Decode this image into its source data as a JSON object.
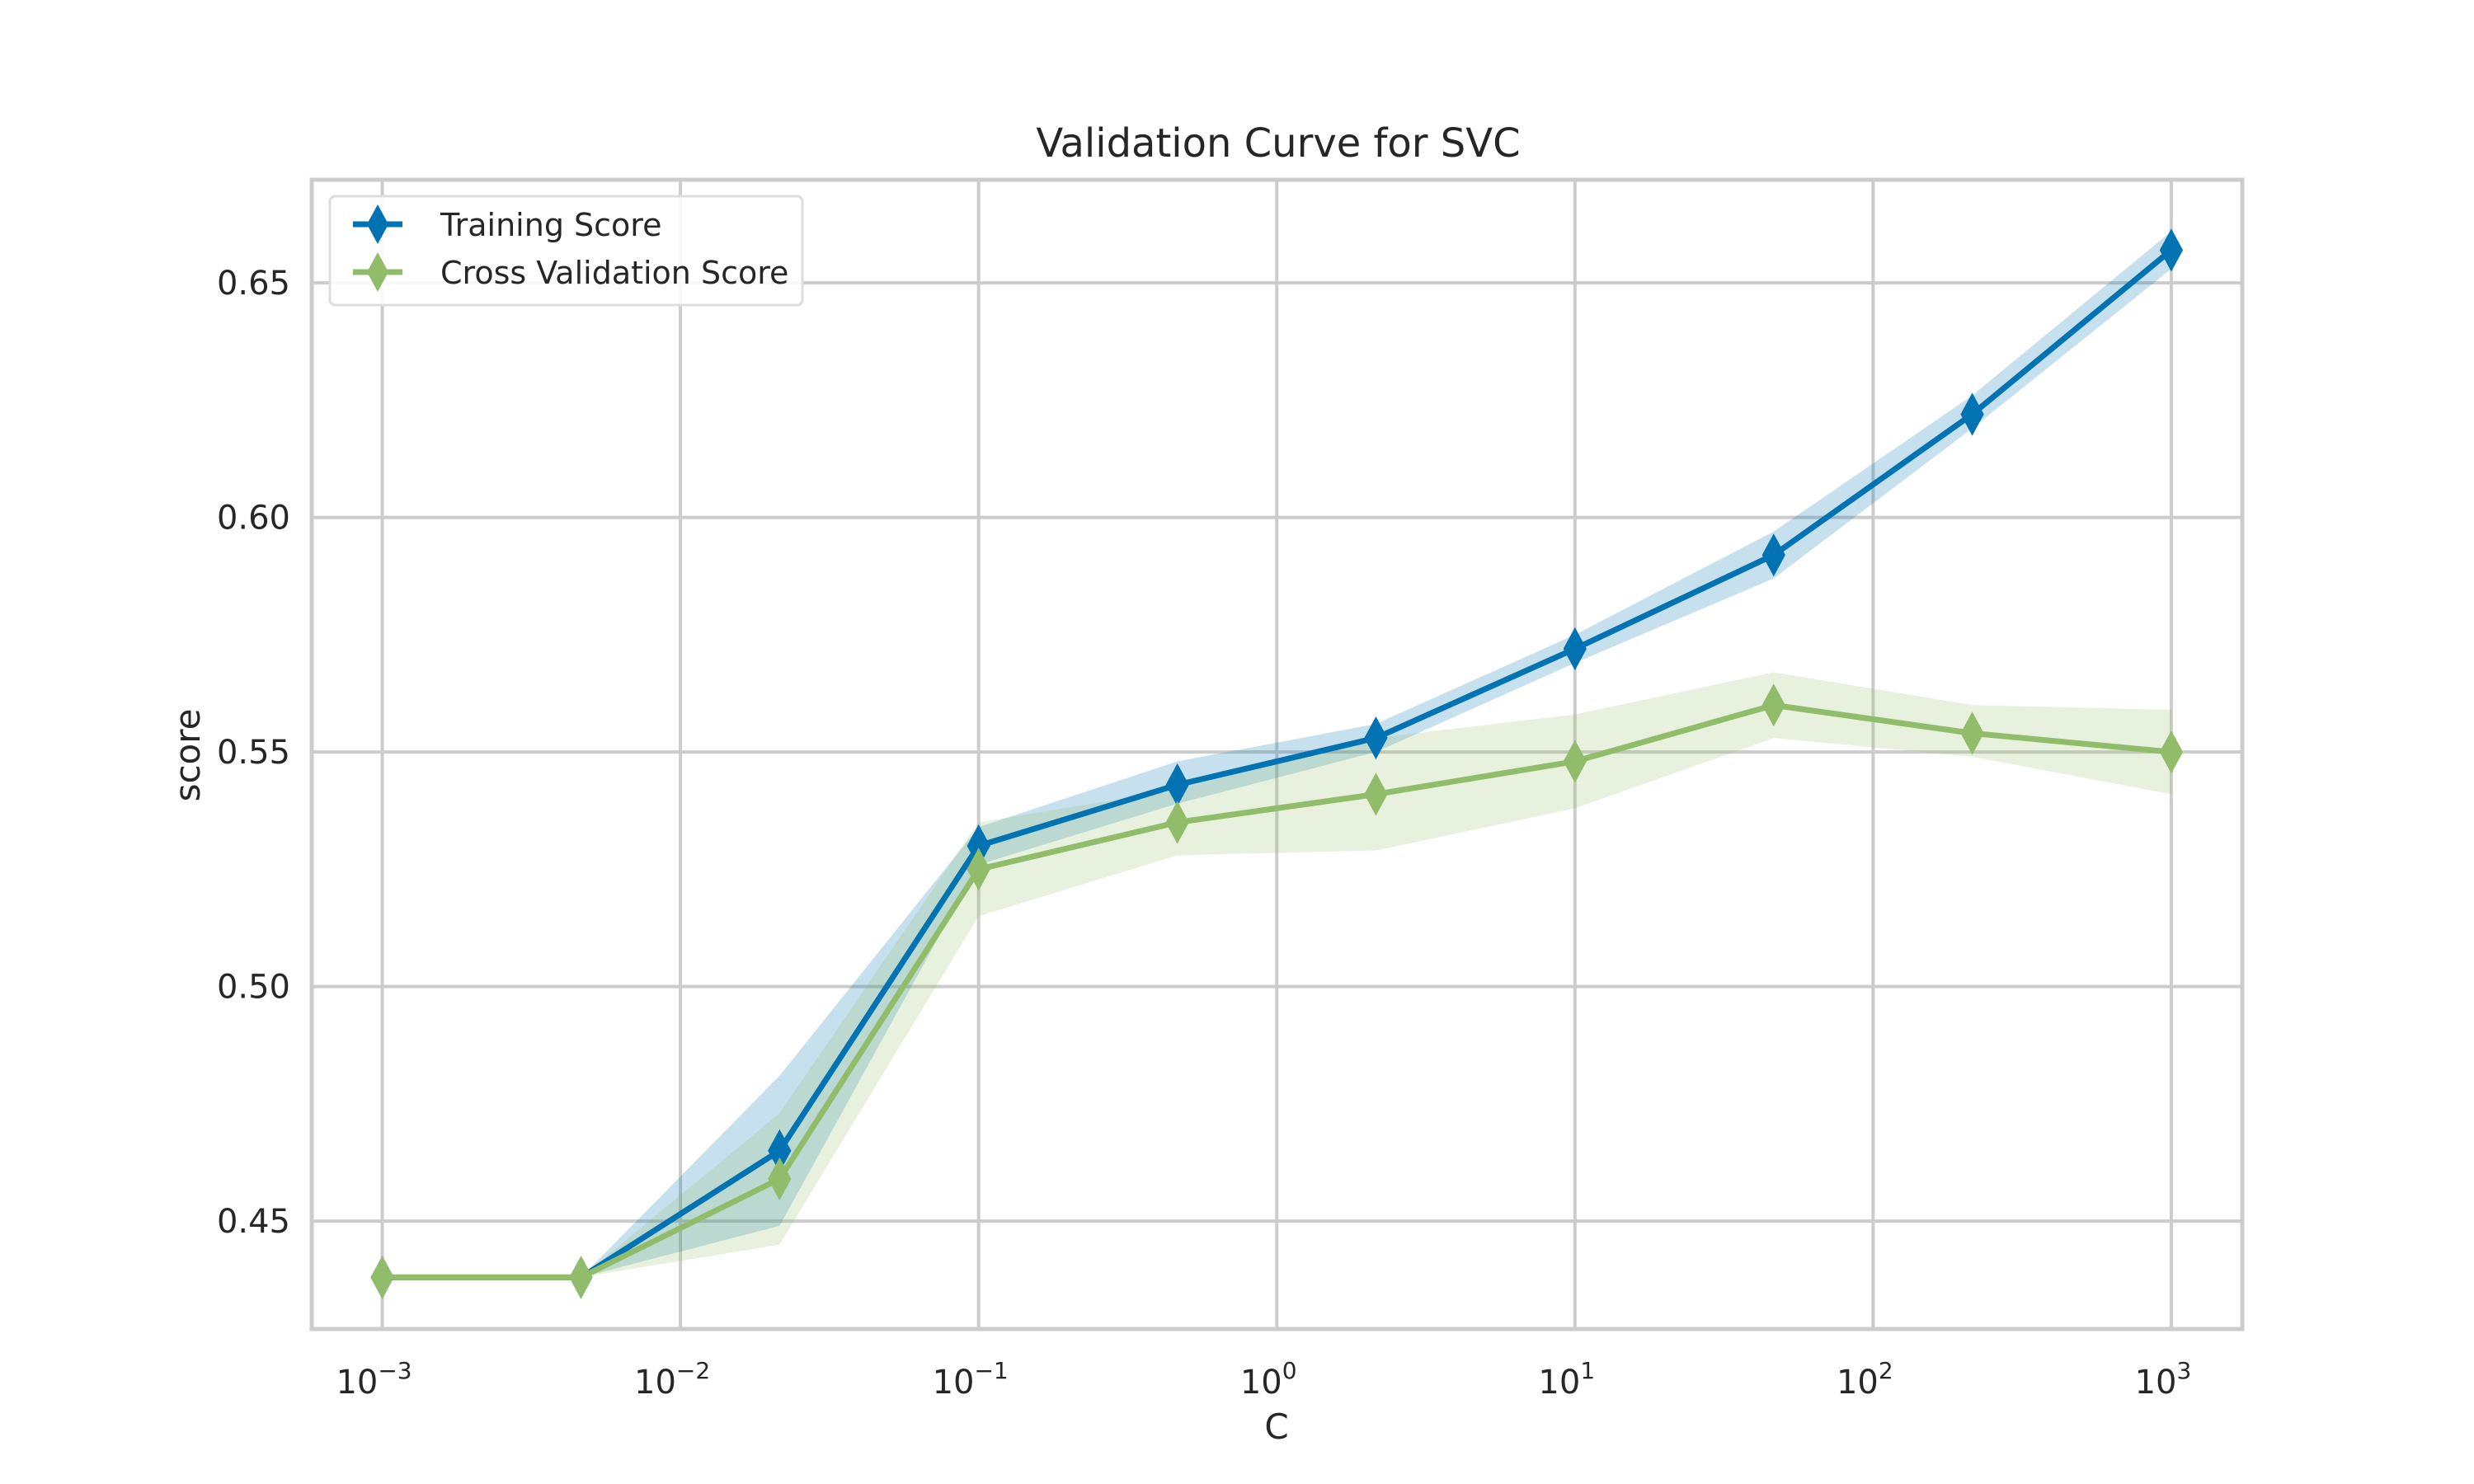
{
  "chart_data": {
    "type": "line",
    "title": "Validation Curve for SVC",
    "xlabel": "C",
    "ylabel": "score",
    "x_scale": "log",
    "xlim": [
      0.00058,
      1730
    ],
    "ylim": [
      0.427,
      0.672
    ],
    "x_ticks": [
      {
        "value": 0.001,
        "base": "10",
        "exp": "−3"
      },
      {
        "value": 0.01,
        "base": "10",
        "exp": "−2"
      },
      {
        "value": 0.1,
        "base": "10",
        "exp": "−1"
      },
      {
        "value": 1,
        "base": "10",
        "exp": "0"
      },
      {
        "value": 10,
        "base": "10",
        "exp": "1"
      },
      {
        "value": 100,
        "base": "10",
        "exp": "2"
      },
      {
        "value": 1000,
        "base": "10",
        "exp": "3"
      }
    ],
    "y_ticks": [
      {
        "value": 0.45,
        "label": "0.45"
      },
      {
        "value": 0.5,
        "label": "0.50"
      },
      {
        "value": 0.55,
        "label": "0.55"
      },
      {
        "value": 0.6,
        "label": "0.60"
      },
      {
        "value": 0.65,
        "label": "0.65"
      }
    ],
    "grid": true,
    "legend_position": "top-left",
    "x": [
      0.001,
      0.00464,
      0.0215,
      0.1,
      0.464,
      2.15,
      10,
      46.4,
      215,
      1000
    ],
    "series": [
      {
        "name": "Training Score",
        "color": "#0173b2",
        "band_color": "#0173b2",
        "values": [
          0.438,
          0.438,
          0.465,
          0.53,
          0.543,
          0.553,
          0.572,
          0.592,
          0.622,
          0.657
        ],
        "lower": [
          0.438,
          0.438,
          0.449,
          0.526,
          0.539,
          0.55,
          0.569,
          0.587,
          0.619,
          0.653
        ],
        "upper": [
          0.438,
          0.438,
          0.481,
          0.534,
          0.548,
          0.556,
          0.575,
          0.597,
          0.626,
          0.661
        ]
      },
      {
        "name": "Cross Validation Score",
        "color": "#91bd6b",
        "band_color": "#91bd6b",
        "values": [
          0.438,
          0.438,
          0.459,
          0.525,
          0.535,
          0.541,
          0.548,
          0.56,
          0.554,
          0.55
        ],
        "lower": [
          0.438,
          0.438,
          0.445,
          0.515,
          0.528,
          0.529,
          0.538,
          0.553,
          0.549,
          0.541
        ],
        "upper": [
          0.438,
          0.438,
          0.473,
          0.535,
          0.542,
          0.553,
          0.558,
          0.567,
          0.56,
          0.559
        ]
      }
    ]
  }
}
